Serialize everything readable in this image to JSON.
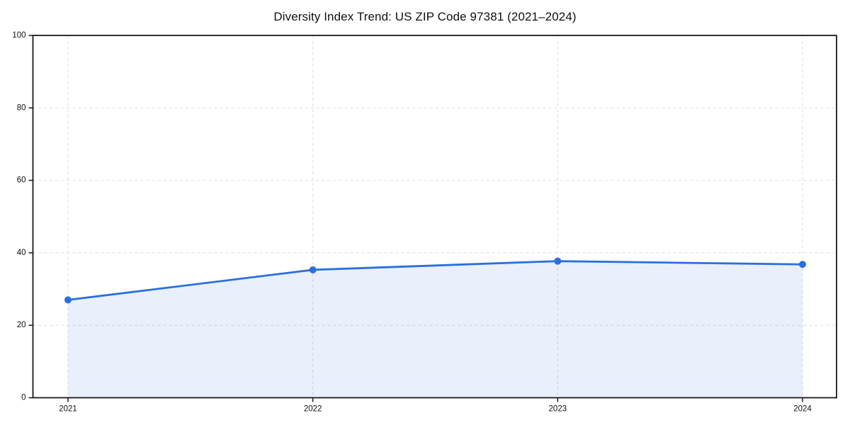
{
  "chart_data": {
    "type": "line",
    "title": "Diversity Index Trend: US ZIP Code 97381 (2021–2024)",
    "categories": [
      "2021",
      "2022",
      "2023",
      "2024"
    ],
    "values": [
      27,
      35.3,
      37.7,
      36.8
    ],
    "xlabel": "",
    "ylabel": "",
    "ylim": [
      0,
      100
    ],
    "yticks": [
      0,
      20,
      40,
      60,
      80,
      100
    ],
    "grid": true,
    "grid_style": "dashed",
    "legend_position": "none",
    "marker": "circle",
    "colors": {
      "line": "#2a6fdf",
      "area_fill": "rgba(42,111,223,0.10)",
      "gridline": "#dcdcdc",
      "spine": "#1a1a1a",
      "tick_text": "#111111",
      "background": "#ffffff"
    }
  }
}
